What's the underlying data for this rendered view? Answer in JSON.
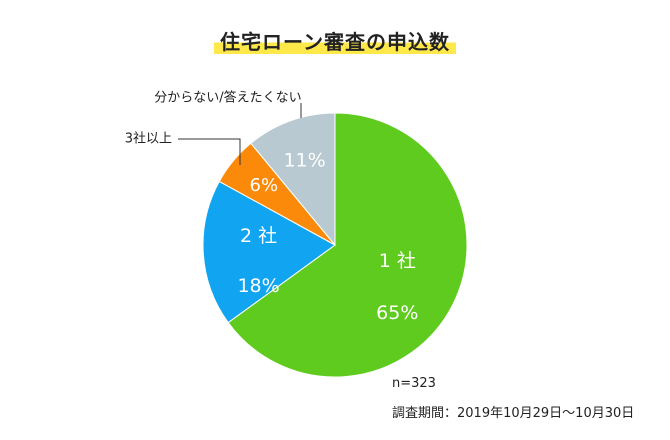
{
  "chart_data": {
    "type": "pie",
    "title": "住宅ローン審査の申込数",
    "slices": [
      {
        "label": "1 社",
        "value": 65,
        "value_label": "65%",
        "color": "#5ecb1e"
      },
      {
        "label": "2 社",
        "value": 18,
        "value_label": "18%",
        "color": "#11a5f1"
      },
      {
        "label": "3社以上",
        "value": 6,
        "value_label": "6%",
        "color": "#fb8a0b"
      },
      {
        "label": "分からない/答えたくない",
        "value": 11,
        "value_label": "11%",
        "color": "#b8c9d1"
      }
    ]
  },
  "notes": {
    "n": "n=323",
    "period": "調査期間：2019年10月29日～10月30日"
  }
}
